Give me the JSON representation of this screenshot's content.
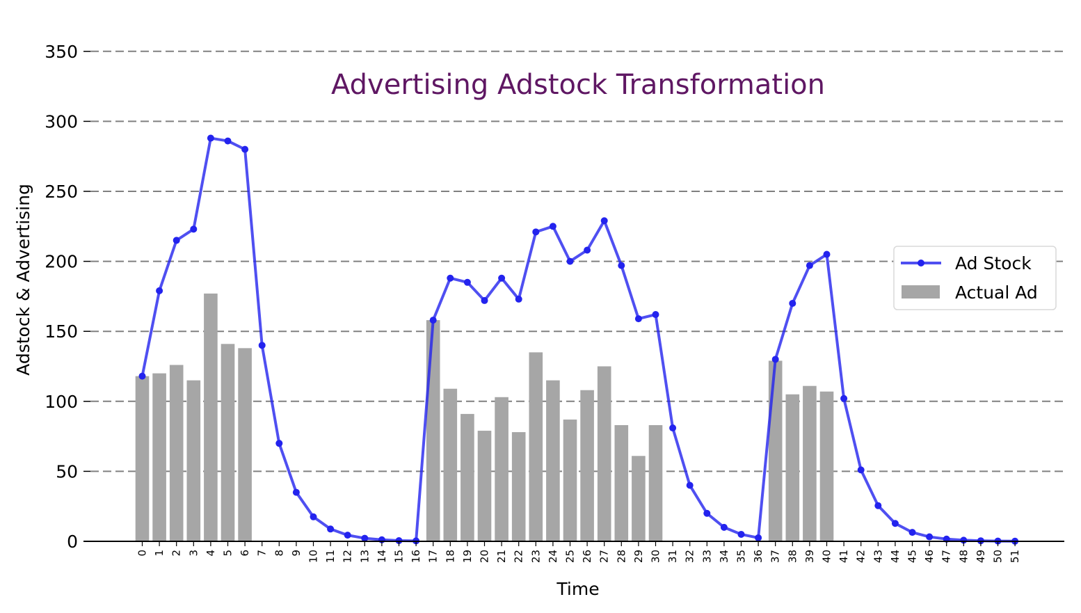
{
  "chart_data": {
    "type": "bar",
    "title": "Advertising Adstock Transformation",
    "xlabel": "Time",
    "ylabel": "Adstock & Advertising",
    "ylim": [
      0,
      360
    ],
    "yticks": [
      0,
      50,
      100,
      150,
      200,
      250,
      300,
      350
    ],
    "grid": "horizontal dashed",
    "legend_position": "center-right",
    "colors": {
      "title": "#5f1763",
      "ad_stock": "#2323ee",
      "actual_ad": "#a6a6a6",
      "grid": "#808080"
    },
    "categories": [
      "0",
      "1",
      "2",
      "3",
      "4",
      "5",
      "6",
      "7",
      "8",
      "9",
      "10",
      "11",
      "12",
      "13",
      "14",
      "15",
      "16",
      "17",
      "18",
      "19",
      "20",
      "21",
      "22",
      "23",
      "24",
      "25",
      "26",
      "27",
      "28",
      "29",
      "30",
      "31",
      "32",
      "33",
      "34",
      "35",
      "36",
      "37",
      "38",
      "39",
      "40",
      "41",
      "42",
      "43",
      "44",
      "45",
      "46",
      "47",
      "48",
      "49",
      "50",
      "51"
    ],
    "series": [
      {
        "name": "Ad Stock",
        "kind": "line",
        "values": [
          118,
          179,
          215,
          223,
          288,
          286,
          280,
          140,
          70,
          35,
          17.5,
          8.8,
          4.4,
          2.2,
          1.1,
          0.5,
          0.3,
          158,
          188,
          185,
          172,
          188,
          173,
          221,
          225,
          200,
          208,
          229,
          197,
          159,
          162,
          81,
          40,
          20,
          10,
          5,
          2.5,
          130,
          170,
          197,
          205,
          102,
          51,
          25.5,
          12.8,
          6.4,
          3.2,
          1.6,
          0.8,
          0.4,
          0.2,
          0.1
        ]
      },
      {
        "name": "Actual Ad",
        "kind": "bar",
        "values": [
          118,
          120,
          126,
          115,
          177,
          141,
          138,
          0,
          0,
          0,
          0,
          0,
          0,
          0,
          0,
          0,
          0,
          158,
          109,
          91,
          79,
          103,
          78,
          135,
          115,
          87,
          108,
          125,
          83,
          61,
          83,
          0,
          0,
          0,
          0,
          0,
          0,
          129,
          105,
          111,
          107,
          0,
          0,
          0,
          0,
          0,
          0,
          0,
          0,
          0,
          0,
          0
        ]
      }
    ]
  }
}
